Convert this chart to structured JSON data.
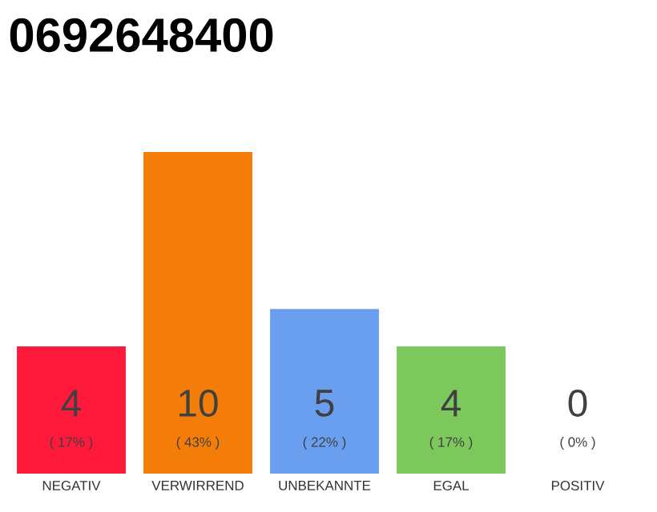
{
  "chart_data": {
    "type": "bar",
    "title": "0692648400",
    "categories": [
      "NEGATIV",
      "VERWIRREND",
      "UNBEKANNTE",
      "EGAL",
      "POSITIV"
    ],
    "values": [
      17,
      43,
      22,
      17,
      0
    ],
    "colors": [
      "#ff1a3c",
      "#f47d0a",
      "#6a9ff0",
      "#7dc85c",
      "#d9d9d9"
    ],
    "value_labels": [
      "( 17% )",
      "( 43% )",
      "( 22% )",
      "( 17% )",
      "( 0% )"
    ],
    "annotations": [
      "4",
      "10",
      "5",
      "4",
      "0"
    ]
  }
}
